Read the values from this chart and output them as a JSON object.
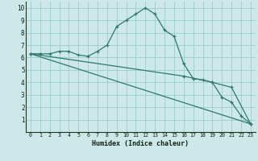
{
  "xlabel": "Humidex (Indice chaleur)",
  "bg_color": "#cce8e8",
  "grid_color": "#99cccc",
  "line_color": "#2d7a6a",
  "xlim": [
    -0.5,
    23.5
  ],
  "ylim": [
    0,
    10.5
  ],
  "xticks": [
    0,
    1,
    2,
    3,
    4,
    5,
    6,
    7,
    8,
    9,
    10,
    11,
    12,
    13,
    14,
    15,
    16,
    17,
    18,
    19,
    20,
    21,
    22,
    23
  ],
  "yticks": [
    1,
    2,
    3,
    4,
    5,
    6,
    7,
    8,
    9,
    10
  ],
  "series": [
    {
      "x": [
        0,
        1,
        2,
        3,
        4,
        5,
        6,
        7,
        8,
        9,
        10,
        11,
        12,
        13,
        14,
        15,
        16,
        17,
        18,
        19,
        20,
        21,
        22,
        23
      ],
      "y": [
        6.3,
        6.3,
        6.3,
        6.5,
        6.5,
        6.2,
        6.1,
        6.5,
        7.0,
        8.5,
        9.0,
        9.5,
        10.0,
        9.5,
        8.2,
        7.7,
        5.5,
        4.3,
        4.2,
        4.0,
        2.8,
        2.4,
        1.3,
        0.65
      ],
      "marker": true
    },
    {
      "x": [
        0,
        23
      ],
      "y": [
        6.3,
        0.65
      ],
      "marker": false
    },
    {
      "x": [
        0,
        16,
        19,
        21,
        23
      ],
      "y": [
        6.3,
        4.5,
        4.0,
        3.6,
        0.65
      ],
      "marker": true
    }
  ]
}
